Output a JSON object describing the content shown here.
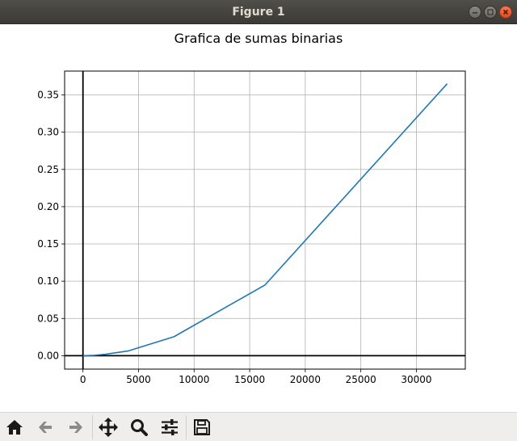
{
  "window": {
    "title": "Figure 1"
  },
  "toolbar": {
    "buttons": [
      {
        "name": "home",
        "icon": "home-icon"
      },
      {
        "name": "back",
        "icon": "back-arrow-icon"
      },
      {
        "name": "forward",
        "icon": "forward-arrow-icon"
      },
      {
        "name": "pan",
        "icon": "pan-move-icon"
      },
      {
        "name": "zoom",
        "icon": "zoom-magnifier-icon"
      },
      {
        "name": "configure-subplots",
        "icon": "sliders-icon"
      },
      {
        "name": "save",
        "icon": "floppy-disk-icon"
      }
    ]
  },
  "chart_data": {
    "type": "line",
    "title": "Grafica de sumas binarias",
    "xlabel": "",
    "ylabel": "",
    "xlim": [
      -1650,
      34400
    ],
    "ylim": [
      -0.018,
      0.382
    ],
    "xticks": [
      0,
      5000,
      10000,
      15000,
      20000,
      25000,
      30000
    ],
    "xtick_labels": [
      "0",
      "5000",
      "10000",
      "15000",
      "20000",
      "25000",
      "30000"
    ],
    "yticks": [
      0.0,
      0.05,
      0.1,
      0.15,
      0.2,
      0.25,
      0.3,
      0.35
    ],
    "ytick_labels": [
      "0.00",
      "0.05",
      "0.10",
      "0.15",
      "0.20",
      "0.25",
      "0.30",
      "0.35"
    ],
    "grid": true,
    "reference_lines": {
      "x0": true,
      "y0": true
    },
    "series": [
      {
        "color": "#1f77b4",
        "x": [
          1,
          2,
          4,
          8,
          16,
          32,
          64,
          128,
          256,
          512,
          1024,
          2048,
          4096,
          8192,
          16384,
          32768
        ],
        "y": [
          0.0,
          0.0,
          0.0,
          0.0,
          0.0,
          0.0,
          0.0,
          0.0,
          0.0001,
          0.0002,
          0.0005,
          0.002,
          0.0065,
          0.0255,
          0.095,
          0.365
        ]
      }
    ]
  }
}
